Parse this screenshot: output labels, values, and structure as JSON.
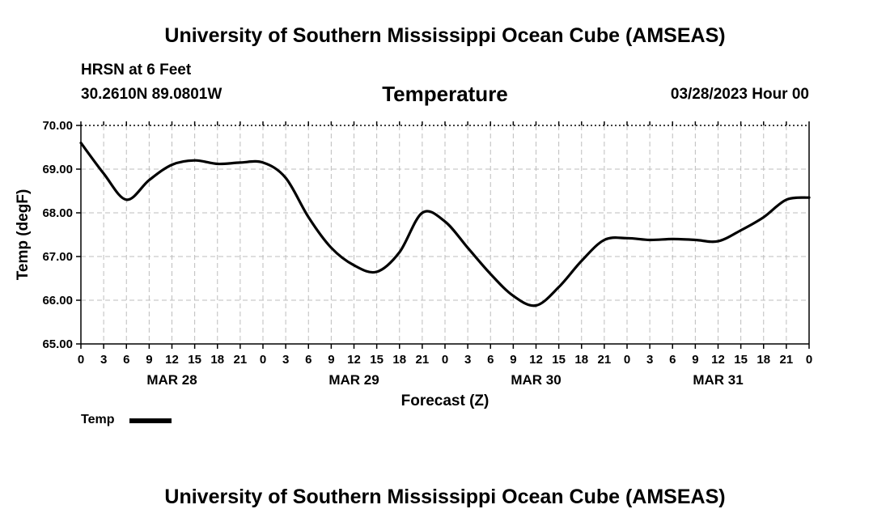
{
  "header": {
    "title": "University of Southern Mississippi Ocean Cube (AMSEAS)",
    "station": "HRSN at 6 Feet",
    "coordinates": "30.2610N  89.0801W",
    "run_time": "03/28/2023 Hour 00"
  },
  "footer": {
    "title": "University of Southern Mississippi Ocean Cube (AMSEAS)"
  },
  "chart_data": {
    "type": "line",
    "title": "Temperature",
    "xlabel": "Forecast (Z)",
    "ylabel": "Temp (degF)",
    "ylim": [
      65.0,
      70.0
    ],
    "xlim": [
      0,
      96
    ],
    "y_ticks": [
      "65.00",
      "66.00",
      "67.00",
      "68.00",
      "69.00",
      "70.00"
    ],
    "x_tick_labels": [
      "0",
      "3",
      "6",
      "9",
      "12",
      "15",
      "18",
      "21",
      "0",
      "3",
      "6",
      "9",
      "12",
      "15",
      "18",
      "21",
      "0",
      "3",
      "6",
      "9",
      "12",
      "15",
      "18",
      "21",
      "0",
      "3",
      "6",
      "9",
      "12",
      "15",
      "18",
      "21",
      "0"
    ],
    "day_labels": [
      "MAR 28",
      "MAR 29",
      "MAR 30",
      "MAR 31"
    ],
    "grid": true,
    "legend": {
      "position": "bottom-left",
      "label": "Temp"
    },
    "series": [
      {
        "name": "Temp",
        "color": "#000000",
        "x": [
          0,
          3,
          6,
          9,
          12,
          15,
          18,
          21,
          24,
          27,
          30,
          33,
          36,
          39,
          42,
          45,
          48,
          51,
          54,
          57,
          60,
          63,
          66,
          69,
          72,
          75,
          78,
          81,
          84,
          87,
          90,
          93,
          96
        ],
        "values": [
          69.6,
          68.9,
          68.3,
          68.75,
          69.1,
          69.2,
          69.12,
          69.15,
          69.15,
          68.8,
          67.9,
          67.2,
          66.8,
          66.65,
          67.1,
          68.0,
          67.8,
          67.2,
          66.6,
          66.1,
          65.88,
          66.3,
          66.9,
          67.38,
          67.42,
          67.38,
          67.4,
          67.38,
          67.35,
          67.6,
          67.9,
          68.3,
          68.35
        ]
      }
    ]
  }
}
